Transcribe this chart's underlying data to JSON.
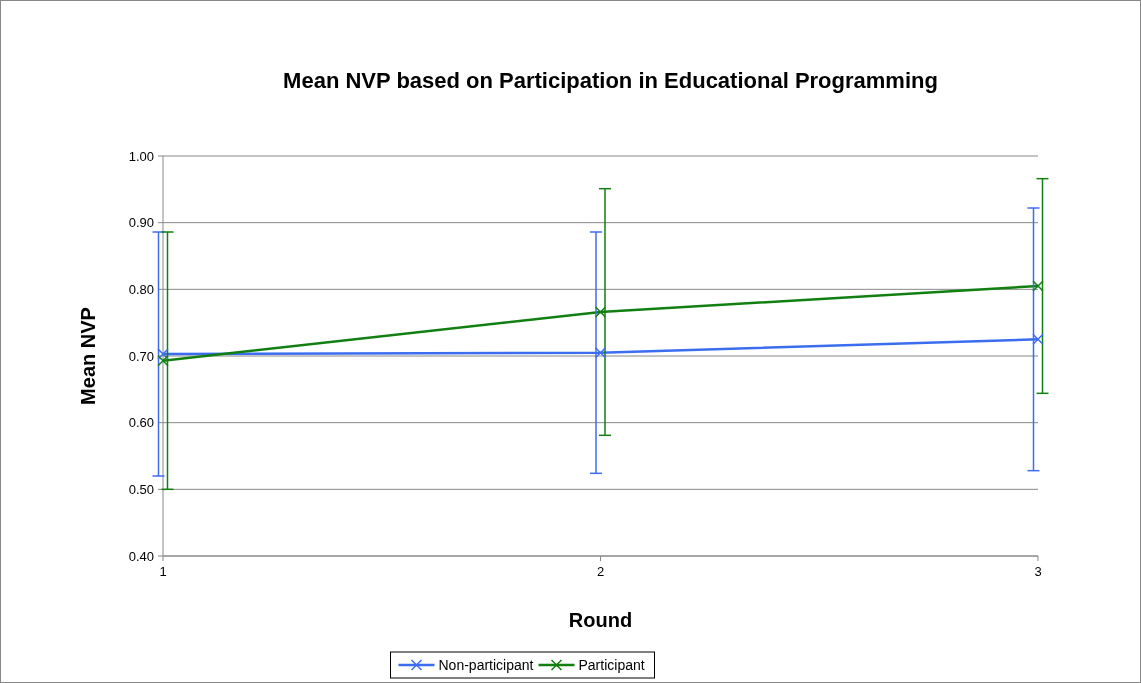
{
  "chart_data": {
    "type": "line",
    "title": "Mean NVP based on Participation in Educational Programming",
    "xlabel": "Round",
    "ylabel": "Mean NVP",
    "x": [
      1,
      2,
      3
    ],
    "xlim": [
      1,
      3
    ],
    "xticks": [
      1,
      2,
      3
    ],
    "ylim": [
      0.4,
      1.0
    ],
    "yticks": [
      {
        "value": 0.4,
        "label": "0.40"
      },
      {
        "value": 0.5,
        "label": "0.50"
      },
      {
        "value": 0.6,
        "label": "0.60"
      },
      {
        "value": 0.7,
        "label": "0.70"
      },
      {
        "value": 0.8,
        "label": "0.80"
      },
      {
        "value": 0.9,
        "label": "0.90"
      },
      {
        "value": 1.0,
        "label": "1.00"
      }
    ],
    "grid": "y",
    "legend": "bottom",
    "marker": "cross",
    "series": [
      {
        "name": "Non-participant",
        "color": "#3c6df0",
        "values": [
          0.703,
          0.705,
          0.725
        ],
        "errors": [
          0.183,
          0.181,
          0.197
        ]
      },
      {
        "name": "Participant",
        "color": "#118011",
        "values": [
          0.693,
          0.766,
          0.805
        ],
        "errors": [
          0.193,
          0.185,
          0.161
        ]
      }
    ]
  }
}
